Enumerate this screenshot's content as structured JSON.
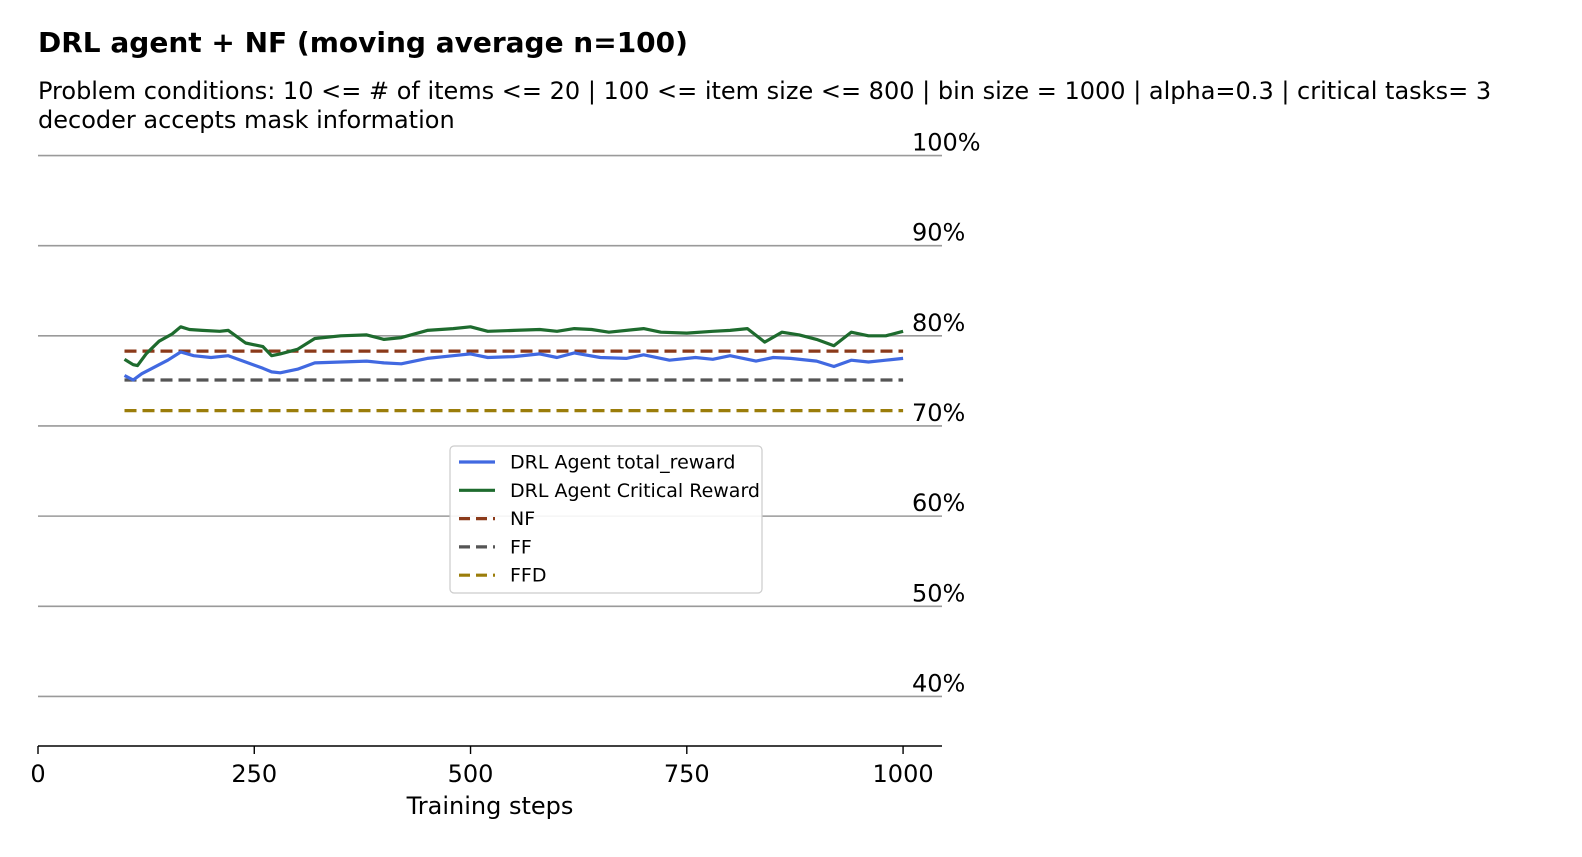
{
  "chart_data": {
    "type": "line",
    "title": "DRL agent + NF (moving average n=100)",
    "subtitle_lines": [
      "Problem conditions: 10 <= # of items <= 20 | 100 <= item size <= 800 | bin size = 1000 | alpha=0.3 | critical tasks= 3",
      "decoder accepts mask information"
    ],
    "xlabel": "Training steps",
    "ylabel": "",
    "xlim": [
      0,
      1045
    ],
    "ylim": [
      34.5,
      101.5
    ],
    "x_ticks": [
      0,
      250,
      500,
      750,
      1000
    ],
    "y_ticks": [
      40,
      50,
      60,
      70,
      80,
      90,
      100
    ],
    "y_tick_labels": [
      "40%",
      "50%",
      "60%",
      "70%",
      "80%",
      "90%",
      "100%"
    ],
    "grid": "horizontal",
    "legend_placement": "center",
    "series": [
      {
        "name": "DRL Agent total_reward",
        "style": "solid",
        "color": "#4169e1",
        "x": [
          100,
          110,
          120,
          130,
          140,
          150,
          165,
          180,
          200,
          220,
          240,
          260,
          270,
          280,
          300,
          320,
          350,
          380,
          400,
          420,
          450,
          480,
          500,
          520,
          550,
          580,
          600,
          620,
          650,
          680,
          700,
          730,
          760,
          780,
          800,
          830,
          850,
          870,
          900,
          920,
          940,
          960,
          980,
          1000
        ],
        "y": [
          75.6,
          75.1,
          75.8,
          76.3,
          76.8,
          77.3,
          78.2,
          77.8,
          77.6,
          77.8,
          77.1,
          76.4,
          76.0,
          75.9,
          76.3,
          77.0,
          77.1,
          77.2,
          77.0,
          76.9,
          77.5,
          77.8,
          78.0,
          77.6,
          77.7,
          78.0,
          77.6,
          78.1,
          77.6,
          77.5,
          77.9,
          77.3,
          77.6,
          77.4,
          77.8,
          77.2,
          77.6,
          77.5,
          77.2,
          76.6,
          77.3,
          77.1,
          77.3,
          77.5
        ]
      },
      {
        "name": "DRL Agent Critical Reward",
        "style": "solid",
        "color": "#1e6b2e",
        "x": [
          100,
          110,
          115,
          125,
          140,
          155,
          165,
          175,
          190,
          210,
          220,
          240,
          260,
          270,
          280,
          300,
          320,
          350,
          380,
          400,
          420,
          450,
          480,
          500,
          520,
          550,
          580,
          600,
          620,
          640,
          660,
          700,
          720,
          750,
          780,
          800,
          820,
          840,
          860,
          880,
          900,
          920,
          940,
          960,
          980,
          1000
        ],
        "y": [
          77.4,
          76.8,
          76.7,
          78.0,
          79.4,
          80.2,
          81.0,
          80.7,
          80.6,
          80.5,
          80.6,
          79.2,
          78.8,
          77.8,
          78.0,
          78.5,
          79.7,
          80.0,
          80.1,
          79.6,
          79.8,
          80.6,
          80.8,
          81.0,
          80.5,
          80.6,
          80.7,
          80.5,
          80.8,
          80.7,
          80.4,
          80.8,
          80.4,
          80.3,
          80.5,
          80.6,
          80.8,
          79.3,
          80.4,
          80.1,
          79.6,
          78.9,
          80.4,
          80.0,
          80.0,
          80.5
        ]
      },
      {
        "name": "NF",
        "style": "dashed",
        "color": "#8b3a1a",
        "x": [
          100,
          1000
        ],
        "y": [
          78.3,
          78.3
        ]
      },
      {
        "name": "FF",
        "style": "dashed",
        "color": "#555555",
        "x": [
          100,
          1000
        ],
        "y": [
          75.1,
          75.1
        ]
      },
      {
        "name": "FFD",
        "style": "dashed",
        "color": "#9b7d0a",
        "x": [
          100,
          1000
        ],
        "y": [
          71.7,
          71.7
        ]
      }
    ]
  }
}
